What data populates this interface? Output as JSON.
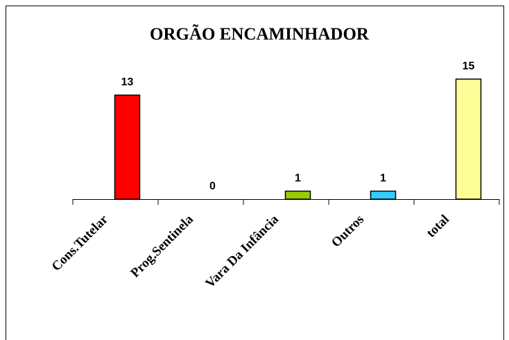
{
  "chart_data": {
    "type": "bar",
    "title": "ORGÃO ENCAMINHADOR",
    "categories": [
      "Cons.Tutelar",
      "Prog.Sentinela",
      "Vara Da Infância",
      "Outros",
      "total"
    ],
    "values": [
      13,
      0,
      1,
      1,
      15
    ],
    "colors": [
      "#ff0000",
      "#ff00ff",
      "#99cc00",
      "#33ccff",
      "#ffff99"
    ],
    "ylim": [
      0,
      15
    ]
  }
}
